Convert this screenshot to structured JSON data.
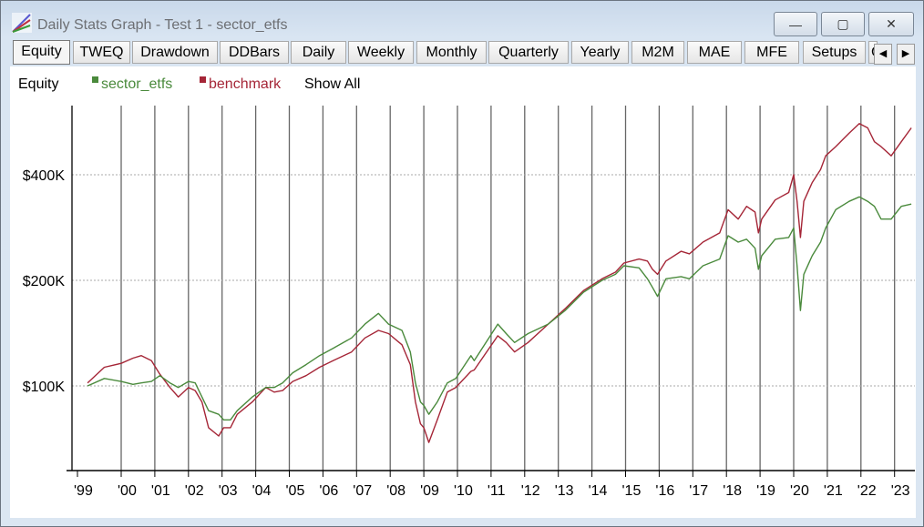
{
  "window": {
    "title": "Daily Stats Graph - Test 1 - sector_etfs",
    "minimize": "—",
    "maximize": "▢",
    "close": "✕"
  },
  "tabs": [
    {
      "label": "Equity",
      "active": true
    },
    {
      "label": "TWEQ"
    },
    {
      "label": "Drawdown"
    },
    {
      "label": "DDBars"
    },
    {
      "label": "Daily"
    },
    {
      "label": "Weekly"
    },
    {
      "label": "Monthly"
    },
    {
      "label": "Quarterly"
    },
    {
      "label": "Yearly"
    },
    {
      "label": "M2M"
    },
    {
      "label": "MAE"
    },
    {
      "label": "MFE"
    },
    {
      "label": "Setups"
    },
    {
      "label": "C"
    }
  ],
  "tab_scroll": {
    "left": "◀",
    "right": "▶"
  },
  "legend": {
    "title": "Equity",
    "show_all": "Show All"
  },
  "chart_data": {
    "type": "line",
    "title": "Equity",
    "yscale": "log",
    "ylim": [
      58,
      600
    ],
    "xlim": [
      1998.6,
      2023.7
    ],
    "y_ticks": [
      {
        "value": 100,
        "label": "$100K"
      },
      {
        "value": 200,
        "label": "$200K"
      },
      {
        "value": 400,
        "label": "$400K"
      }
    ],
    "x_ticks": [
      {
        "value": 1999,
        "label": "'99"
      },
      {
        "value": 2000,
        "label": "'00"
      },
      {
        "value": 2001,
        "label": "'01"
      },
      {
        "value": 2002,
        "label": "'02"
      },
      {
        "value": 2003,
        "label": "'03"
      },
      {
        "value": 2004,
        "label": "'04"
      },
      {
        "value": 2005,
        "label": "'05"
      },
      {
        "value": 2006,
        "label": "'06"
      },
      {
        "value": 2007,
        "label": "'07"
      },
      {
        "value": 2008,
        "label": "'08"
      },
      {
        "value": 2009,
        "label": "'09"
      },
      {
        "value": 2010,
        "label": "'10"
      },
      {
        "value": 2011,
        "label": "'11"
      },
      {
        "value": 2012,
        "label": "'12"
      },
      {
        "value": 2013,
        "label": "'13"
      },
      {
        "value": 2014,
        "label": "'14"
      },
      {
        "value": 2015,
        "label": "'15"
      },
      {
        "value": 2016,
        "label": "'16"
      },
      {
        "value": 2017,
        "label": "'17"
      },
      {
        "value": 2018,
        "label": "'18"
      },
      {
        "value": 2019,
        "label": "'19"
      },
      {
        "value": 2020,
        "label": "'20"
      },
      {
        "value": 2021,
        "label": "'21"
      },
      {
        "value": 2022,
        "label": "'22"
      },
      {
        "value": 2023,
        "label": "'23"
      }
    ],
    "x": [
      1999.0,
      1999.5,
      2000.0,
      2000.35,
      2000.6,
      2000.9,
      2001.15,
      2001.45,
      2001.7,
      2002.0,
      2002.2,
      2002.4,
      2002.6,
      2002.9,
      2003.05,
      2003.25,
      2003.45,
      2003.9,
      2004.3,
      2004.55,
      2004.8,
      2005.1,
      2005.5,
      2005.9,
      2006.3,
      2006.85,
      2007.25,
      2007.65,
      2007.95,
      2008.35,
      2008.6,
      2008.75,
      2008.9,
      2009.0,
      2009.15,
      2009.4,
      2009.7,
      2009.95,
      2010.4,
      2010.5,
      2011.2,
      2011.45,
      2011.7,
      2012.1,
      2012.7,
      2013.2,
      2013.75,
      2014.3,
      2014.7,
      2014.95,
      2015.4,
      2015.65,
      2015.8,
      2015.95,
      2016.2,
      2016.65,
      2016.9,
      2017.3,
      2017.8,
      2018.05,
      2018.35,
      2018.6,
      2018.85,
      2018.95,
      2019.05,
      2019.45,
      2019.85,
      2020.0,
      2020.1,
      2020.2,
      2020.3,
      2020.55,
      2020.8,
      2020.95,
      2021.25,
      2021.65,
      2021.95,
      2022.2,
      2022.4,
      2022.6,
      2022.9,
      2023.2,
      2023.5
    ],
    "series": [
      {
        "name": "sector_etfs",
        "color": "#4a8a3c",
        "values": [
          100,
          105,
          103,
          101,
          102,
          103,
          107,
          102,
          99,
          103,
          102,
          93,
          85,
          83,
          80,
          80,
          85,
          93,
          99,
          99,
          102,
          109,
          115,
          122,
          128,
          137,
          150,
          161,
          150,
          144,
          125,
          102,
          90,
          88,
          83,
          90,
          102,
          105,
          122,
          118,
          150,
          141,
          133,
          141,
          150,
          164,
          185,
          200,
          208,
          220,
          217,
          202,
          191,
          180,
          202,
          205,
          202,
          220,
          230,
          268,
          257,
          262,
          247,
          215,
          235,
          262,
          265,
          282,
          220,
          164,
          208,
          235,
          257,
          282,
          318,
          336,
          346,
          336,
          325,
          299,
          299,
          325,
          330
        ]
      },
      {
        "name": "benchmark",
        "color": "#a52637",
        "values": [
          102,
          113,
          116,
          120,
          122,
          118,
          108,
          99,
          93,
          99,
          97,
          90,
          76,
          72,
          76,
          76,
          83,
          90,
          99,
          96,
          97,
          103,
          107,
          113,
          118,
          125,
          137,
          144,
          141,
          131,
          115,
          90,
          78,
          76,
          69,
          80,
          96,
          99,
          110,
          111,
          139,
          133,
          125,
          133,
          150,
          166,
          187,
          202,
          211,
          224,
          230,
          227,
          215,
          208,
          227,
          242,
          238,
          257,
          273,
          318,
          299,
          325,
          313,
          273,
          299,
          339,
          356,
          400,
          336,
          265,
          336,
          380,
          414,
          453,
          481,
          526,
          560,
          544,
          497,
          481,
          453,
          497,
          544
        ]
      }
    ]
  }
}
